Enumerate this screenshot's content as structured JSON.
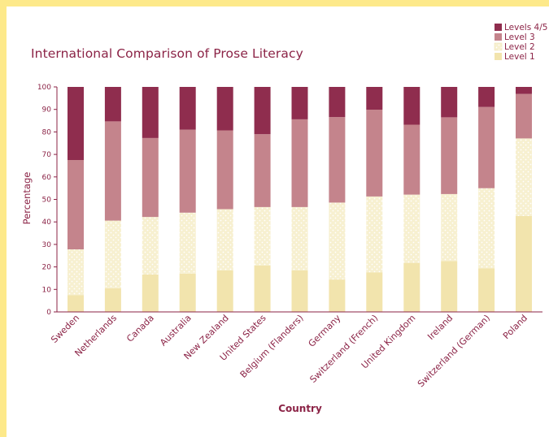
{
  "chart_data": {
    "type": "bar",
    "stacked": true,
    "title": "International Comparison of Prose Literacy",
    "xlabel": "Country",
    "ylabel": "Percentage",
    "ylim": [
      0,
      100
    ],
    "yticks": [
      0,
      10,
      20,
      30,
      40,
      50,
      60,
      70,
      80,
      90,
      100
    ],
    "grid": false,
    "legend_position": "top-right",
    "legend_order": [
      "Levels 4/5",
      "Level 3",
      "Level 2",
      "Level 1"
    ],
    "categories": [
      "Sweden",
      "Netherlands",
      "Canada",
      "Australia",
      "New Zealand",
      "United States",
      "Belgium (Flanders)",
      "Germany",
      "Switzerland (French)",
      "United Kingdom",
      "Ireland",
      "Switzerland (German)",
      "Poland"
    ],
    "series": [
      {
        "name": "Level 1",
        "color": "#f2e4ad",
        "values": [
          7.5,
          10.5,
          16.6,
          17.0,
          18.4,
          20.7,
          18.4,
          14.4,
          17.6,
          21.8,
          22.6,
          19.3,
          42.6
        ]
      },
      {
        "name": "Level 2",
        "color": "#f7f0d0",
        "values": [
          20.3,
          30.1,
          25.6,
          27.1,
          27.3,
          25.9,
          28.2,
          34.2,
          33.7,
          30.3,
          29.8,
          35.7,
          34.5
        ]
      },
      {
        "name": "Level 3",
        "color": "#c4848c",
        "values": [
          39.7,
          44.1,
          35.1,
          36.9,
          35.0,
          32.4,
          39.0,
          38.0,
          38.6,
          31.1,
          34.1,
          36.1,
          19.8
        ]
      },
      {
        "name": "Levels 4/5",
        "color": "#8f2d4e",
        "values": [
          32.5,
          15.3,
          22.7,
          19.0,
          19.3,
          21.0,
          14.4,
          13.4,
          10.1,
          16.8,
          13.5,
          8.9,
          3.1
        ]
      }
    ]
  }
}
